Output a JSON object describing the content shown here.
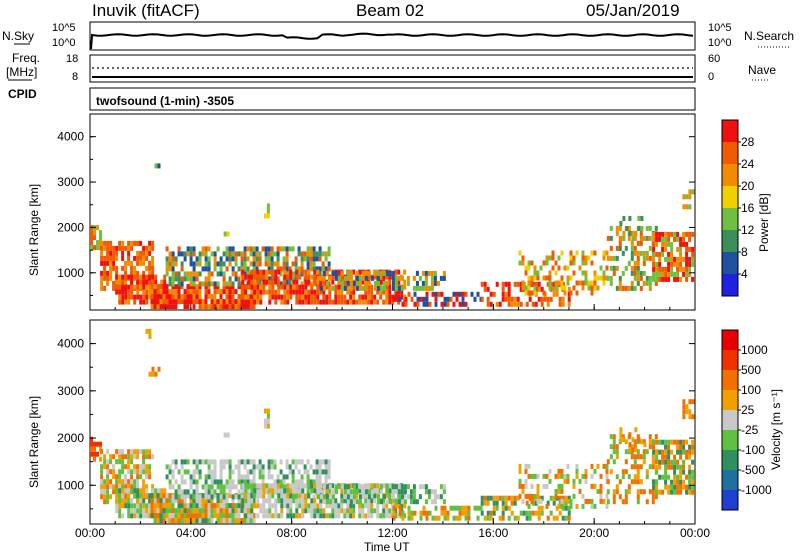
{
  "header": {
    "station": "Inuvik (fitACF)",
    "beam": "Beam 02",
    "date": "05/Jan/2019"
  },
  "aux_panels": {
    "nsky_label": "N.Sky",
    "nsearch_label": "N.Search",
    "freq_label": "Freq.",
    "freq_unit": "[MHz]",
    "cpid_label": "CPID",
    "nave_label": "Nave",
    "nsky_ticks": [
      "10^5",
      "10^0"
    ],
    "nsearch_ticks": [
      "10^5",
      "10^0"
    ],
    "freq_ticks": [
      "18",
      "8"
    ],
    "nave_ticks": [
      "60",
      "0"
    ],
    "cpid_text": "twofsound (1-min) -3505"
  },
  "colors": {
    "power": [
      "#2020e0",
      "#2050a0",
      "#3a8f5a",
      "#70c040",
      "#f0d000",
      "#f08c00",
      "#f05a00",
      "#f01010"
    ],
    "velocity": [
      "#1f3fd0",
      "#1f6f9f",
      "#2f8f5f",
      "#60c040",
      "#c8c8c8",
      "#f0a000",
      "#f07000",
      "#f03000",
      "#e80000"
    ]
  },
  "chart_data": [
    {
      "type": "heatmap",
      "title": "Power",
      "ylabel": "Slant Range [km]",
      "xlabel": "",
      "x_ticks": [
        "00:00",
        "04:00",
        "08:00",
        "12:00",
        "16:00",
        "20:00",
        "00:00"
      ],
      "y_ticks": [
        1000,
        2000,
        3000,
        4000
      ],
      "ylim": [
        180,
        4500
      ],
      "xlim": [
        0,
        24
      ],
      "colorbar_label": "Power [dB]",
      "colorbar_ticks": [
        4,
        8,
        12,
        16,
        20,
        24,
        28
      ],
      "colorbar_range": [
        0,
        32
      ]
    },
    {
      "type": "heatmap",
      "title": "Velocity",
      "ylabel": "Slant Range [km]",
      "xlabel": "Time UT",
      "x_ticks": [
        "00:00",
        "04:00",
        "08:00",
        "12:00",
        "16:00",
        "20:00",
        "00:00"
      ],
      "y_ticks": [
        1000,
        2000,
        3000,
        4000
      ],
      "ylim": [
        180,
        4500
      ],
      "xlim": [
        0,
        24
      ],
      "colorbar_label": "Velocity [m s⁻¹]",
      "colorbar_ticks": [
        "1000",
        "500",
        "100",
        "25",
        "-25",
        "-100",
        "-500",
        "-1000"
      ]
    }
  ]
}
